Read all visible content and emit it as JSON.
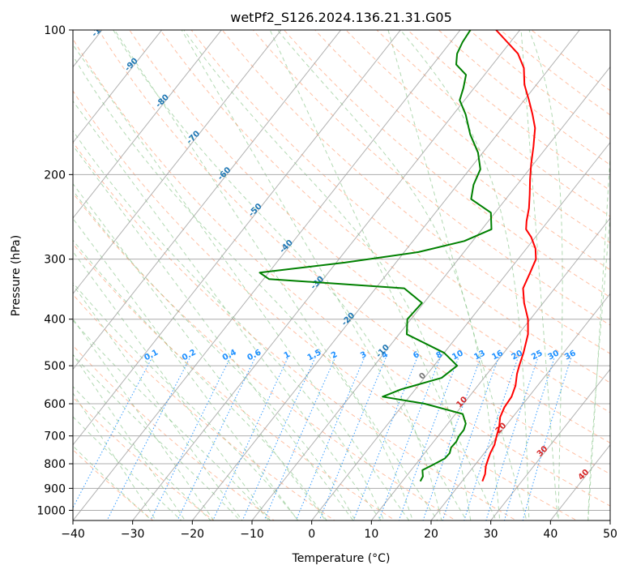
{
  "chart_data": {
    "type": "line",
    "title": "wetPf2_S126.2024.136.21.31.G05",
    "xlabel": "Temperature (°C)",
    "ylabel": "Pressure (hPa)",
    "xlim": [
      -40,
      50
    ],
    "ylim": [
      1050,
      100
    ],
    "y_scale": "log",
    "x_ticks": [
      "−40",
      "−30",
      "−20",
      "−10",
      "0",
      "10",
      "20",
      "30",
      "40",
      "50"
    ],
    "y_ticks": [
      "100",
      "200",
      "300",
      "400",
      "500",
      "600",
      "700",
      "800",
      "900",
      "1000"
    ],
    "grid": true,
    "series": [
      {
        "role": "temperature",
        "color": "#ff0000",
        "points": [
          [
            23.4,
            870
          ],
          [
            22.9,
            840
          ],
          [
            22.0,
            810
          ],
          [
            21.4,
            780
          ],
          [
            21.0,
            760
          ],
          [
            20.6,
            730
          ],
          [
            19.8,
            700
          ],
          [
            19.0,
            670
          ],
          [
            17.9,
            640
          ],
          [
            17.3,
            610
          ],
          [
            17.1,
            580
          ],
          [
            16.3,
            550
          ],
          [
            15.0,
            520
          ],
          [
            14.3,
            500
          ],
          [
            13.3,
            470
          ],
          [
            11.6,
            430
          ],
          [
            9.6,
            400
          ],
          [
            6.8,
            370
          ],
          [
            4.7,
            345
          ],
          [
            3.8,
            320
          ],
          [
            3.0,
            300
          ],
          [
            1.5,
            285
          ],
          [
            -0.7,
            270
          ],
          [
            -2.6,
            260
          ],
          [
            -3.6,
            250
          ],
          [
            -4.9,
            235
          ],
          [
            -6.6,
            220
          ],
          [
            -8.5,
            205
          ],
          [
            -10.4,
            190
          ],
          [
            -12.3,
            175
          ],
          [
            -14.5,
            160
          ],
          [
            -16.7,
            150
          ],
          [
            -19.2,
            140
          ],
          [
            -22.0,
            130
          ],
          [
            -24.3,
            120
          ],
          [
            -27.2,
            112
          ],
          [
            -30.5,
            106
          ],
          [
            -34.0,
            100
          ]
        ]
      },
      {
        "role": "dewpoint",
        "color": "#008000",
        "points": [
          [
            13.0,
            870
          ],
          [
            12.8,
            850
          ],
          [
            11.9,
            825
          ],
          [
            12.9,
            805
          ],
          [
            14.1,
            780
          ],
          [
            14.2,
            760
          ],
          [
            13.7,
            740
          ],
          [
            13.8,
            720
          ],
          [
            13.5,
            700
          ],
          [
            13.5,
            680
          ],
          [
            13.0,
            660
          ],
          [
            11.2,
            630
          ],
          [
            3.5,
            600
          ],
          [
            -4.5,
            580
          ],
          [
            -2.4,
            560
          ],
          [
            2.9,
            530
          ],
          [
            3.9,
            500
          ],
          [
            0.0,
            470
          ],
          [
            -8.7,
            430
          ],
          [
            -10.6,
            400
          ],
          [
            -10.3,
            370
          ],
          [
            -15.2,
            345
          ],
          [
            -39.1,
            330
          ],
          [
            -41.5,
            320
          ],
          [
            -28.6,
            305
          ],
          [
            -17.6,
            290
          ],
          [
            -11.4,
            275
          ],
          [
            -8.4,
            260
          ],
          [
            -10.7,
            240
          ],
          [
            -15.8,
            225
          ],
          [
            -17.3,
            210
          ],
          [
            -18.2,
            195
          ],
          [
            -20.8,
            180
          ],
          [
            -24.5,
            165
          ],
          [
            -27.9,
            150
          ],
          [
            -30.8,
            140
          ],
          [
            -31.8,
            132
          ],
          [
            -33.1,
            124
          ],
          [
            -36.1,
            118
          ],
          [
            -37.4,
            112
          ],
          [
            -38.0,
            106
          ],
          [
            -38.3,
            100
          ]
        ]
      }
    ],
    "dry_adiabat_labels": [
      "-100",
      "-90",
      "-80",
      "-70",
      "-60",
      "-50",
      "-40",
      "-30",
      "-20",
      "-10",
      "0",
      "10",
      "20",
      "30",
      "40"
    ],
    "mixing_ratio_labels": [
      "0.1",
      "0.2",
      "0.4",
      "0.6",
      "1",
      "1.5",
      "2",
      "3",
      "4",
      "6",
      "8",
      "10",
      "13",
      "16",
      "20",
      "25",
      "30",
      "36"
    ],
    "colors": {
      "dry_adiabat": "#ff8c5a",
      "moist_adiabat": "#7fbf7f",
      "mixing_ratio": "#1e90ff",
      "isotherm": "#9e9e9e",
      "isobar": "#9e9e9e",
      "adiabat_label_blue": "#1f77b4",
      "adiabat_label_red": "#d62728"
    }
  }
}
